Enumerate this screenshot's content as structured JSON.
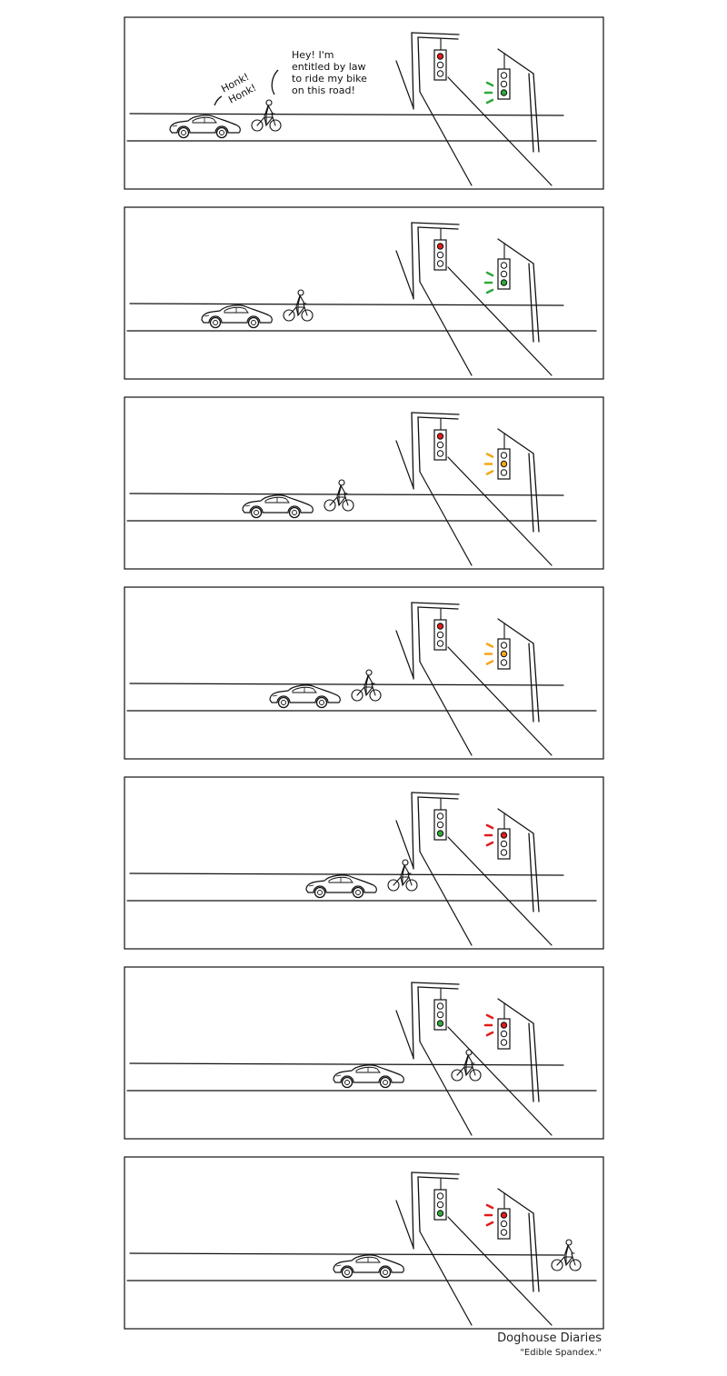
{
  "comic": {
    "speech": {
      "honk_line1": "Honk!",
      "honk_line2": "Honk!",
      "bubble_line1": "Hey!  I'm",
      "bubble_line2": "entitled by law",
      "bubble_line3": "to ride my bike",
      "bubble_line4": "on this road!"
    },
    "panels": [
      {
        "car_offset": 0.0,
        "bike_offset": 0.0,
        "near_signal": "red",
        "far_signal": "green"
      },
      {
        "car_offset": 0.07,
        "bike_offset": 0.07,
        "near_signal": "red",
        "far_signal": "green"
      },
      {
        "car_offset": 0.16,
        "bike_offset": 0.16,
        "near_signal": "red",
        "far_signal": "yellow"
      },
      {
        "car_offset": 0.22,
        "bike_offset": 0.22,
        "near_signal": "red",
        "far_signal": "yellow"
      },
      {
        "car_offset": 0.3,
        "bike_offset": 0.3,
        "near_signal": "green",
        "far_signal": "red"
      },
      {
        "car_offset": 0.36,
        "bike_offset": 0.44,
        "near_signal": "green",
        "far_signal": "red"
      },
      {
        "car_offset": 0.36,
        "bike_offset": 0.66,
        "near_signal": "green",
        "far_signal": "red"
      }
    ],
    "colors": {
      "red": "#e01b1b",
      "green": "#2fa83a",
      "yellow": "#f2a51c",
      "ink": "#111111"
    },
    "caption": {
      "title": "Doghouse Diaries",
      "subtitle": "\"Edible Spandex.\""
    }
  }
}
